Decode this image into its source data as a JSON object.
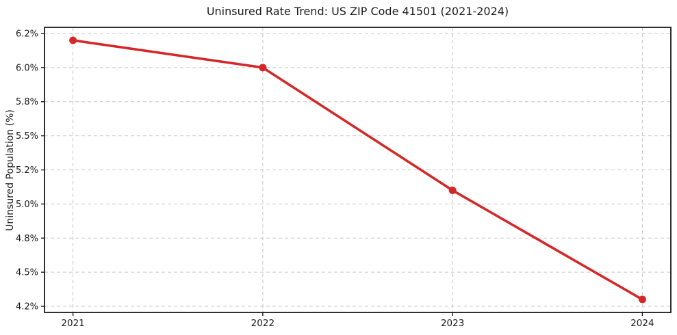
{
  "chart_data": {
    "type": "line",
    "title": "Uninsured Rate Trend: US ZIP Code 41501 (2021-2024)",
    "xlabel": "",
    "ylabel": "Uninsured Population (%)",
    "x": [
      2021,
      2022,
      2023,
      2024
    ],
    "categories": [
      "2021",
      "2022",
      "2023",
      "2024"
    ],
    "series": [
      {
        "name": "Uninsured Rate",
        "values": [
          6.2,
          6.0,
          5.1,
          4.3
        ]
      }
    ],
    "xlim": [
      2020.85,
      2024.15
    ],
    "ylim": [
      4.205,
      6.295
    ],
    "yticks": [
      {
        "value": 4.25,
        "label": "4.2%"
      },
      {
        "value": 4.5,
        "label": "4.5%"
      },
      {
        "value": 4.75,
        "label": "4.8%"
      },
      {
        "value": 5.0,
        "label": "5.0%"
      },
      {
        "value": 5.25,
        "label": "5.2%"
      },
      {
        "value": 5.5,
        "label": "5.5%"
      },
      {
        "value": 5.75,
        "label": "5.8%"
      },
      {
        "value": 6.0,
        "label": "6.0%"
      },
      {
        "value": 6.25,
        "label": "6.2%"
      }
    ],
    "xticks": [
      {
        "value": 2021,
        "label": "2021"
      },
      {
        "value": 2022,
        "label": "2022"
      },
      {
        "value": 2023,
        "label": "2023"
      },
      {
        "value": 2024,
        "label": "2024"
      }
    ],
    "grid": "both-dashed",
    "legend": "none",
    "line_color": "#d62728",
    "marker": "circle",
    "background": "#ffffff"
  }
}
